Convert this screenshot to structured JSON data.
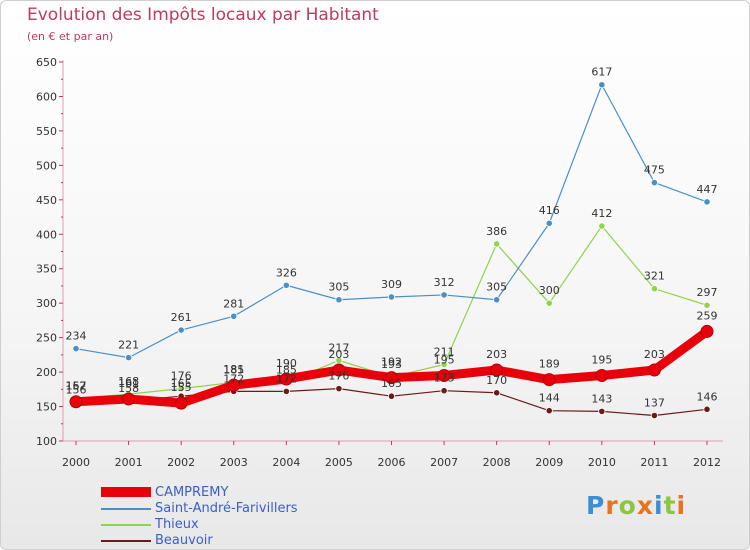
{
  "header": {
    "title": "Evolution des Impôts locaux par Habitant",
    "subtitle": "(en € et par an)"
  },
  "logo": {
    "text": "Proxiti",
    "letter_colors": [
      "#3b8fd6",
      "#e8731e",
      "#8cc63f",
      "#e8731e",
      "#3b8fd6",
      "#8cc63f",
      "#e8731e"
    ]
  },
  "colors": {
    "title": "#c0395e",
    "legend_text": "#3b5ec9"
  },
  "chart_data": {
    "type": "line",
    "title": "Evolution des Impôts locaux par Habitant",
    "subtitle": "(en € et par an)",
    "x": [
      "2000",
      "2001",
      "2002",
      "2003",
      "2004",
      "2005",
      "2006",
      "2007",
      "2008",
      "2009",
      "2010",
      "2011",
      "2012"
    ],
    "ylim": [
      100,
      650
    ],
    "yticks": [
      100,
      150,
      200,
      250,
      300,
      350,
      400,
      450,
      500,
      550,
      600,
      650
    ],
    "grid": false,
    "legend_position": "bottom-left",
    "series": [
      {
        "name": "CAMPREMY",
        "color": "#e8000b",
        "values": [
          157,
          161,
          155,
          181,
          190,
          203,
          192,
          195,
          203,
          189,
          195,
          203,
          259
        ],
        "labels": [
          "157",
          "161",
          "155",
          "181",
          "190",
          "203",
          "192",
          "195",
          "203",
          "189",
          "195",
          "203",
          "259"
        ]
      },
      {
        "name": "Saint-André-Farivillers",
        "color": "#4a90c8",
        "values": [
          234,
          221,
          261,
          281,
          326,
          305,
          309,
          312,
          305,
          416,
          617,
          475,
          447
        ],
        "labels": [
          "234",
          "221",
          "261",
          "281",
          "326",
          "305",
          "309",
          "312",
          "305",
          "416",
          "617",
          "475",
          "447"
        ]
      },
      {
        "name": "Thieux",
        "color": "#8fd44a",
        "values": [
          162,
          168,
          176,
          185,
          185,
          217,
          193,
          211,
          386,
          300,
          412,
          321,
          297
        ],
        "labels": [
          "162",
          "168",
          "176",
          "185",
          "185",
          "217",
          "193",
          "211",
          "386",
          "300",
          "412",
          "321",
          "297"
        ]
      },
      {
        "name": "Beauvoir",
        "color": "#6b1a1a",
        "values": [
          156,
          158,
          165,
          172,
          172,
          176,
          165,
          173,
          170,
          144,
          143,
          137,
          146
        ],
        "labels": [
          "156",
          "158",
          "165",
          "172",
          "172",
          "176",
          "165",
          "173",
          "170",
          "144",
          "143",
          "137",
          "146"
        ]
      }
    ]
  }
}
